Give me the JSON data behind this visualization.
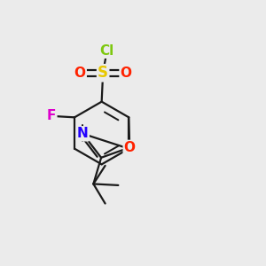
{
  "bg_color": "#EBEBEB",
  "bond_color": "#1a1a1a",
  "atom_colors": {
    "Cl": "#7ec810",
    "S": "#e8c800",
    "O": "#ff2200",
    "F": "#dd00cc",
    "N": "#2200ff"
  },
  "figsize": [
    3.0,
    3.0
  ],
  "dpi": 100
}
